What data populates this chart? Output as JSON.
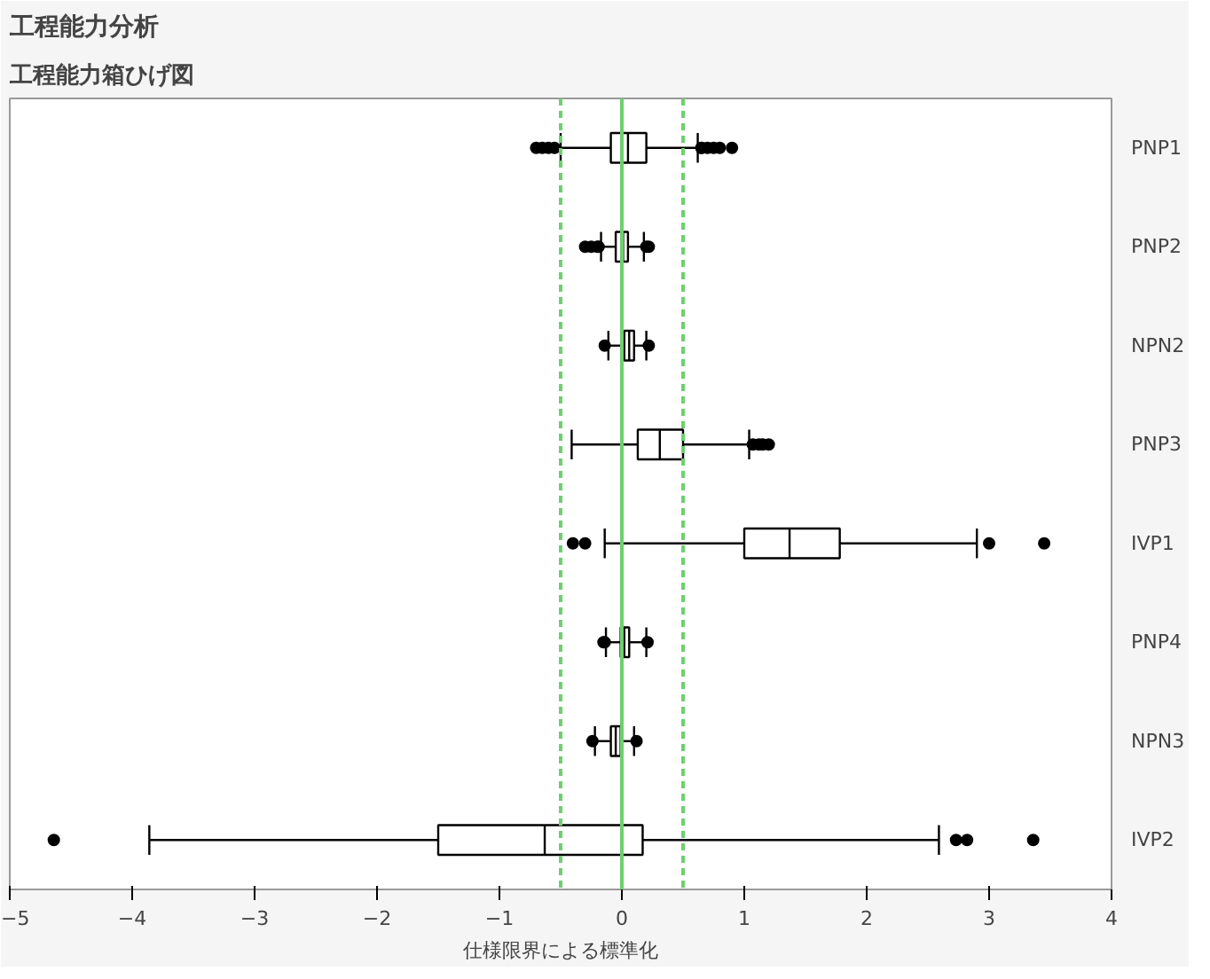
{
  "chart_data": {
    "type": "box",
    "title": "工程能力分析",
    "subtitle": "工程能力箱ひげ図",
    "xlabel": "仕様限界による標準化",
    "orientation": "horizontal",
    "categories": [
      "PNP1",
      "PNP2",
      "NPN2",
      "PNP3",
      "IVP1",
      "PNP4",
      "NPN3",
      "IVP2"
    ],
    "boxes": [
      {
        "low": -0.5,
        "q1": -0.09,
        "median": 0.05,
        "q3": 0.2,
        "high": 0.62,
        "outliers": [
          -0.7,
          -0.65,
          -0.6,
          -0.55,
          0.65,
          0.7,
          0.75,
          0.8,
          0.9,
          0.65
        ]
      },
      {
        "low": -0.17,
        "q1": -0.05,
        "median": 0.01,
        "q3": 0.05,
        "high": 0.18,
        "outliers": [
          -0.3,
          -0.25,
          -0.2,
          -0.19,
          0.2,
          0.22
        ]
      },
      {
        "low": -0.11,
        "q1": 0.02,
        "median": 0.06,
        "q3": 0.1,
        "high": 0.2,
        "outliers": [
          -0.14,
          0.22
        ]
      },
      {
        "low": -0.41,
        "q1": 0.13,
        "median": 0.31,
        "q3": 0.5,
        "high": 1.04,
        "outliers": [
          1.07,
          1.12,
          1.15,
          1.2
        ]
      },
      {
        "low": -0.14,
        "q1": 1.0,
        "median": 1.37,
        "q3": 1.78,
        "high": 2.9,
        "outliers": [
          -0.4,
          -0.3,
          3.0,
          3.45
        ]
      },
      {
        "low": -0.13,
        "q1": -0.01,
        "median": 0.02,
        "q3": 0.06,
        "high": 0.2,
        "outliers": [
          -0.15,
          -0.14,
          0.21
        ]
      },
      {
        "low": -0.22,
        "q1": -0.09,
        "median": -0.05,
        "q3": -0.01,
        "high": 0.1,
        "outliers": [
          -0.24,
          0.12
        ]
      },
      {
        "low": -3.86,
        "q1": -1.5,
        "median": -0.63,
        "q3": 0.17,
        "high": 2.59,
        "outliers": [
          -4.64,
          2.73,
          2.82,
          3.36
        ]
      }
    ],
    "xlim": [
      -5,
      4
    ],
    "xticks": [
      -5,
      -4,
      -3,
      -2,
      -1,
      0,
      1,
      2,
      3,
      4
    ],
    "ref_lines": [
      {
        "axis": "x",
        "value": -0.5,
        "color": "#6fcf6f",
        "line_style": "dashed"
      },
      {
        "axis": "x",
        "value": 0,
        "color": "#6fcf6f",
        "line_style": "solid"
      },
      {
        "axis": "x",
        "value": 0.5,
        "color": "#6fcf6f",
        "line_style": "dashed"
      }
    ],
    "grid": false
  }
}
